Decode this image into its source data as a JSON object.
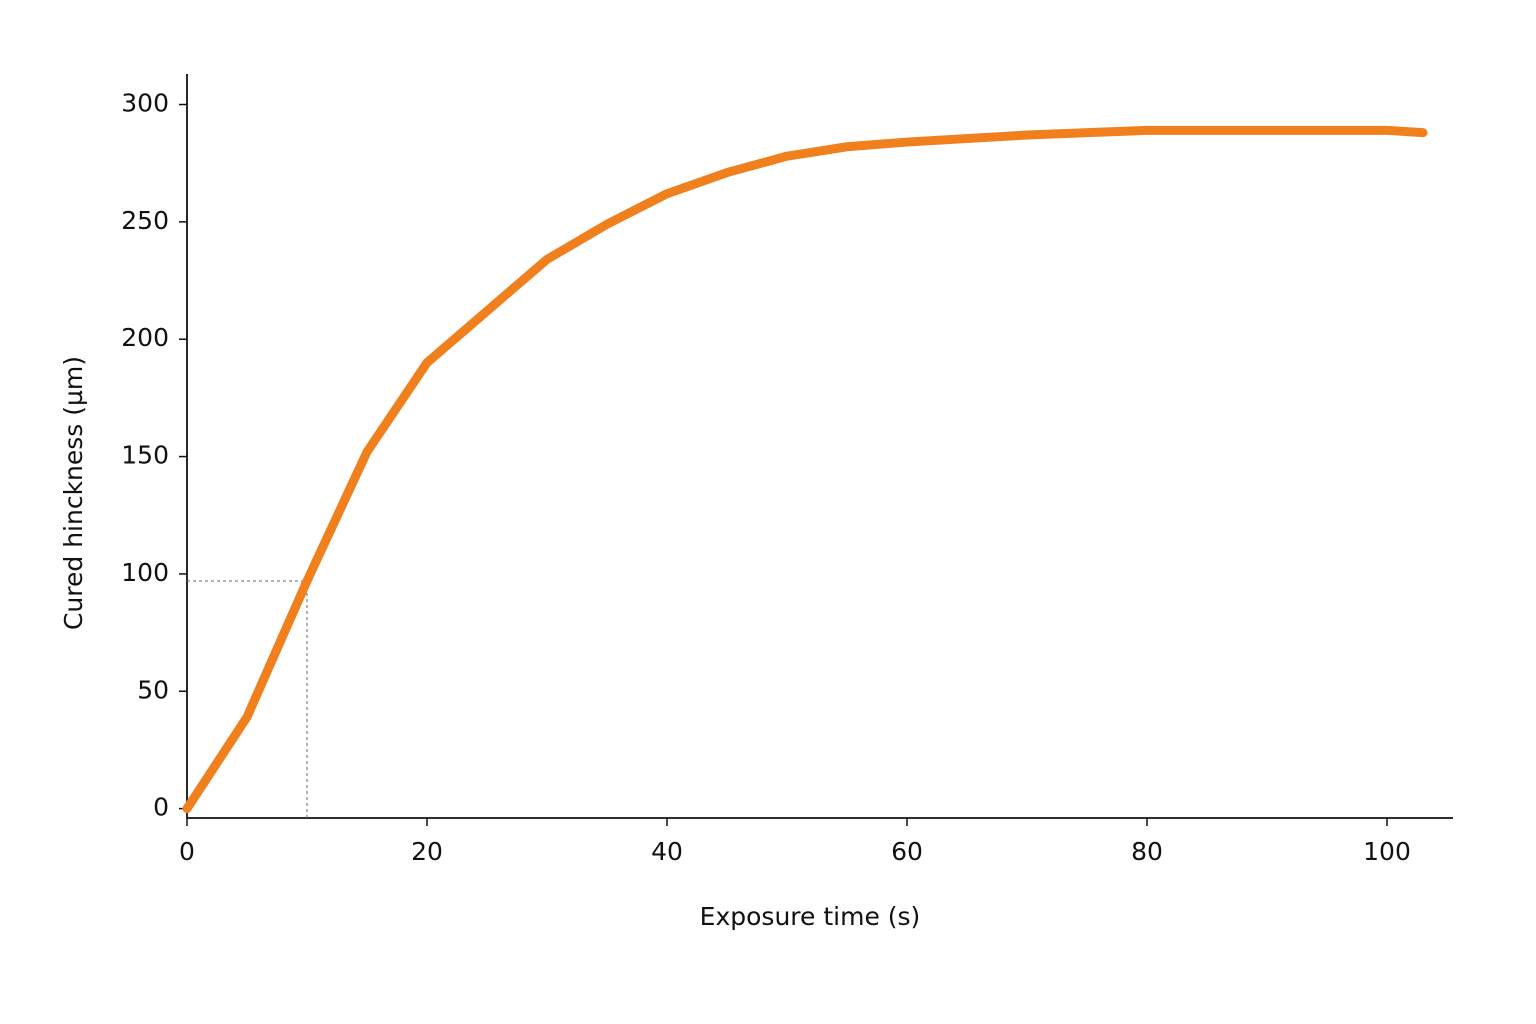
{
  "chart_data": {
    "type": "line",
    "x_label": "Exposure time (s)",
    "y_label": "Cured hinckness (µm)",
    "x": [
      0,
      5,
      10,
      15,
      20,
      25,
      30,
      35,
      40,
      45,
      50,
      55,
      60,
      70,
      80,
      90,
      100,
      103
    ],
    "series": [
      {
        "color": "#f0801e",
        "values": [
          0,
          39,
          97,
          152,
          190,
          212,
          234,
          249,
          262,
          271,
          278,
          282,
          284,
          287,
          289,
          289,
          289,
          288
        ]
      }
    ],
    "guide": {
      "x": 10,
      "y": 97
    },
    "xlim": [
      0,
      105.5
    ],
    "xticks": [
      0,
      20,
      40,
      60,
      80,
      100
    ],
    "ylim": [
      -4,
      313
    ],
    "yticks": [
      0,
      50,
      100,
      150,
      200,
      250,
      300
    ],
    "grid": false
  }
}
